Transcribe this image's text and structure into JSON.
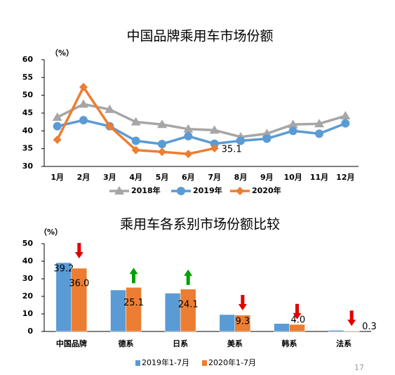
{
  "chart_data": [
    {
      "type": "line",
      "title": "中国品牌乘用车市场份额",
      "y_label": "（%）",
      "categories": [
        "1月",
        "2月",
        "3月",
        "4月",
        "5月",
        "6月",
        "7月",
        "8月",
        "9月",
        "10月",
        "11月",
        "12月"
      ],
      "series": [
        {
          "name": "2018年",
          "color": "#a6a6a6",
          "marker": "triangle",
          "values": [
            43.8,
            47.5,
            46,
            42.5,
            41.8,
            40.5,
            40.2,
            38.3,
            39.2,
            41.8,
            42,
            44.2
          ]
        },
        {
          "name": "2019年",
          "color": "#5b9bd5",
          "marker": "circle",
          "values": [
            41.3,
            43,
            41.3,
            37.2,
            36.3,
            38.5,
            36.4,
            37.2,
            37.8,
            40,
            39.2,
            42.1
          ]
        },
        {
          "name": "2020年",
          "color": "#ed7d31",
          "marker": "diamond",
          "values": [
            37.5,
            52.3,
            41.3,
            34.6,
            34.1,
            33.5,
            35.1,
            null,
            null,
            null,
            null,
            null
          ],
          "value_labels": [
            null,
            null,
            null,
            null,
            null,
            null,
            "35.1",
            null,
            null,
            null,
            null,
            null
          ]
        }
      ],
      "ylim": [
        30,
        60
      ],
      "yticks": [
        30,
        35,
        40,
        45,
        50,
        55,
        60
      ],
      "legend": "bottom"
    },
    {
      "type": "bar",
      "title": "乘用车各系别市场份额比较",
      "y_label": "（%）",
      "categories": [
        "中国品牌",
        "德系",
        "日系",
        "美系",
        "韩系",
        "法系"
      ],
      "series": [
        {
          "name": "2019年1-7月",
          "color": "#5b9bd5",
          "values": [
            39.2,
            23.6,
            21.8,
            9.6,
            4.5,
            0.7
          ],
          "value_labels": [
            "39.2",
            null,
            null,
            null,
            null,
            null
          ]
        },
        {
          "name": "2020年1-7月",
          "color": "#ed7d31",
          "values": [
            36,
            25.1,
            24.1,
            9.3,
            4,
            0.3
          ],
          "value_labels": [
            "36.0",
            "25.1",
            "24.1",
            "9.3",
            "4.0",
            "0.3"
          ]
        }
      ],
      "ylim": [
        0,
        50
      ],
      "yticks": [
        0,
        10,
        20,
        30,
        40,
        50
      ],
      "legend": "bottom"
    }
  ],
  "page_number": "17"
}
